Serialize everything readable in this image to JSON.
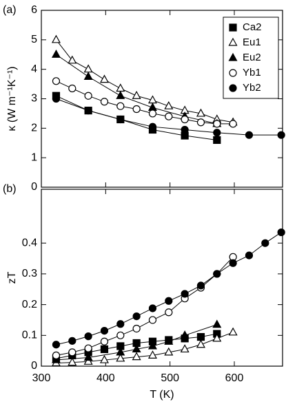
{
  "chart_data": [
    {
      "type": "line",
      "panel_label": "(a)",
      "ylabel": "κ (W m⁻¹K⁻¹)",
      "legend": "upper right",
      "xlim": [
        300,
        675
      ],
      "xticks": [
        300,
        400,
        500,
        600
      ],
      "ylim": [
        0,
        6
      ],
      "yticks": [
        0,
        1,
        2,
        3,
        4,
        5,
        6
      ],
      "series": [
        {
          "name": "Ca2",
          "color": "#000000",
          "marker": "square",
          "filled": true,
          "x": [
            323,
            373,
            423,
            473,
            523,
            573
          ],
          "values": [
            3.1,
            2.6,
            2.3,
            1.95,
            1.75,
            1.6
          ]
        },
        {
          "name": "Eu1",
          "color": "#000000",
          "marker": "triangle",
          "filled": false,
          "x": [
            323,
            348,
            373,
            398,
            423,
            448,
            473,
            498,
            523,
            548,
            573,
            598
          ],
          "values": [
            5.0,
            4.3,
            4.0,
            3.65,
            3.35,
            3.1,
            2.95,
            2.75,
            2.6,
            2.5,
            2.3,
            2.2
          ]
        },
        {
          "name": "Eu2",
          "color": "#000000",
          "marker": "triangle",
          "filled": true,
          "x": [
            323,
            373,
            423,
            473,
            523,
            573
          ],
          "values": [
            4.5,
            3.75,
            3.1,
            2.7,
            2.4,
            2.15
          ]
        },
        {
          "name": "Yb1",
          "color": "#000000",
          "marker": "circle",
          "filled": false,
          "x": [
            323,
            348,
            373,
            398,
            423,
            448,
            473,
            498,
            523,
            548,
            573,
            598
          ],
          "values": [
            3.6,
            3.35,
            3.1,
            2.9,
            2.75,
            2.65,
            2.5,
            2.4,
            2.3,
            2.2,
            2.15,
            2.15
          ]
        },
        {
          "name": "Yb2",
          "color": "#000000",
          "marker": "circle",
          "filled": true,
          "x": [
            323,
            373,
            423,
            473,
            523,
            573,
            623,
            673
          ],
          "values": [
            3.0,
            2.6,
            2.3,
            2.05,
            1.95,
            1.85,
            1.77,
            1.77
          ]
        }
      ]
    },
    {
      "type": "line",
      "panel_label": "(b)",
      "ylabel": "zT",
      "xlabel": "T (K)",
      "xlim": [
        300,
        675
      ],
      "xticks": [
        300,
        400,
        500,
        600
      ],
      "ylim": [
        0,
        0.575
      ],
      "yticks": [
        0,
        0.1,
        0.2,
        0.3,
        0.4
      ],
      "series": [
        {
          "color": "#000000",
          "marker": "square",
          "filled": true,
          "x": [
            323,
            348,
            373,
            398,
            423,
            448,
            473,
            498,
            523,
            548,
            573
          ],
          "values": [
            0.025,
            0.035,
            0.045,
            0.055,
            0.065,
            0.075,
            0.08,
            0.085,
            0.09,
            0.095,
            0.105
          ]
        },
        {
          "color": "#000000",
          "marker": "triangle",
          "filled": false,
          "x": [
            323,
            348,
            373,
            398,
            423,
            448,
            473,
            498,
            523,
            548,
            573,
            598
          ],
          "values": [
            0.01,
            0.012,
            0.015,
            0.02,
            0.025,
            0.03,
            0.035,
            0.045,
            0.055,
            0.07,
            0.09,
            0.11
          ]
        },
        {
          "color": "#000000",
          "marker": "triangle",
          "filled": true,
          "x": [
            323,
            373,
            423,
            448,
            473,
            498,
            523,
            573
          ],
          "values": [
            0.02,
            0.028,
            0.045,
            0.055,
            0.065,
            0.08,
            0.1,
            0.135
          ]
        },
        {
          "color": "#000000",
          "marker": "circle",
          "filled": false,
          "x": [
            323,
            348,
            373,
            398,
            423,
            448,
            473,
            498,
            523,
            548,
            573,
            598
          ],
          "values": [
            0.035,
            0.045,
            0.058,
            0.08,
            0.1,
            0.122,
            0.15,
            0.175,
            0.22,
            0.255,
            0.3,
            0.355
          ]
        },
        {
          "color": "#000000",
          "marker": "circle",
          "filled": true,
          "x": [
            323,
            348,
            373,
            398,
            423,
            448,
            473,
            498,
            523,
            548,
            573,
            598,
            623,
            648,
            673
          ],
          "values": [
            0.07,
            0.082,
            0.097,
            0.115,
            0.137,
            0.162,
            0.188,
            0.212,
            0.235,
            0.262,
            0.3,
            0.335,
            0.36,
            0.4,
            0.435
          ]
        }
      ]
    }
  ]
}
